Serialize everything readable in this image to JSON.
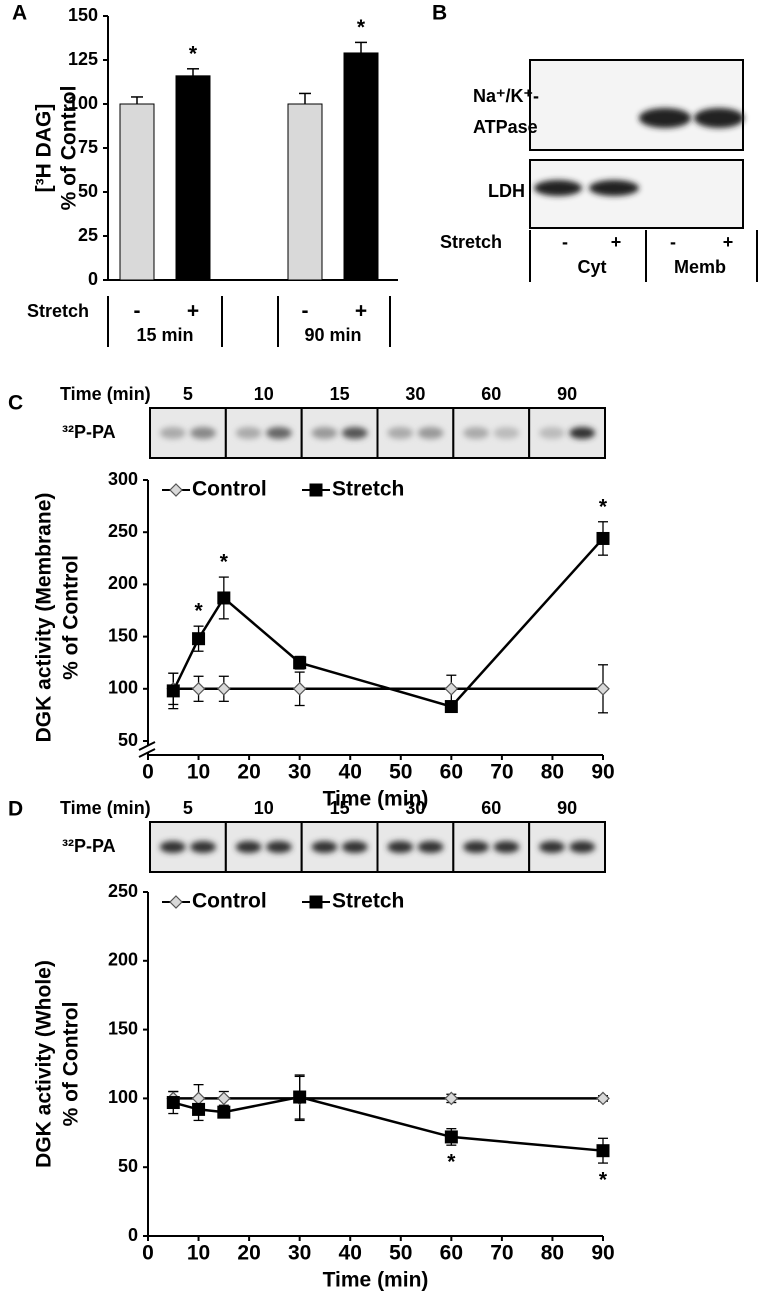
{
  "chart_data": [
    {
      "type": "bar",
      "panel": "A",
      "ylabel": [
        "[³H DAG]",
        "% of Control"
      ],
      "xlabel": "Stretch",
      "categories": [
        "-",
        "+",
        "-",
        "+"
      ],
      "groups": [
        "15 min",
        "90 min"
      ],
      "values": [
        100,
        116,
        100,
        129
      ],
      "errors": [
        4,
        4,
        6,
        6
      ],
      "colors": [
        "#d9d9d9",
        "#000000",
        "#d9d9d9",
        "#000000"
      ],
      "ylim": [
        0,
        150
      ],
      "yticks": [
        0,
        25,
        50,
        75,
        100,
        125,
        150
      ],
      "annotations": [
        {
          "text": "*",
          "index": 1
        },
        {
          "text": "*",
          "index": 3
        }
      ]
    },
    {
      "type": "line",
      "panel": "C",
      "ylabel": [
        "DGK activity (Membrane)",
        "% of Control"
      ],
      "xlabel": "Time (min)",
      "x": [
        5,
        10,
        15,
        30,
        60,
        90
      ],
      "series": [
        {
          "name": "Control",
          "color": "#000000",
          "marker": "diamond",
          "marker_fill": "#d9d9d9",
          "values": [
            100,
            100,
            100,
            100,
            100,
            100
          ],
          "errors": [
            15,
            12,
            12,
            16,
            13,
            23
          ]
        },
        {
          "name": "Stretch",
          "color": "#000000",
          "marker": "square",
          "marker_fill": "#000000",
          "values": [
            98,
            148,
            187,
            125,
            83,
            244
          ],
          "errors": [
            17,
            12,
            20,
            6,
            4,
            16
          ]
        }
      ],
      "xlim": [
        0,
        90
      ],
      "xticks": [
        0,
        10,
        20,
        30,
        40,
        50,
        60,
        70,
        80,
        90
      ],
      "ylim": [
        50,
        300
      ],
      "yticks": [
        50,
        100,
        150,
        200,
        250,
        300
      ],
      "axis_break": true,
      "legend": "top-left",
      "annotations": [
        {
          "text": "*",
          "series": 1,
          "x": 10,
          "side": "above"
        },
        {
          "text": "*",
          "series": 1,
          "x": 15,
          "side": "above"
        },
        {
          "text": "*",
          "series": 1,
          "x": 90,
          "side": "above"
        }
      ]
    },
    {
      "type": "line",
      "panel": "D",
      "ylabel": [
        "DGK activity (Whole)",
        "% of Control"
      ],
      "xlabel": "Time (min)",
      "x": [
        5,
        10,
        15,
        30,
        60,
        90
      ],
      "series": [
        {
          "name": "Control",
          "color": "#000000",
          "marker": "diamond",
          "marker_fill": "#d9d9d9",
          "values": [
            100,
            100,
            100,
            100,
            100,
            100
          ],
          "errors": [
            5,
            10,
            5,
            16,
            3,
            2
          ]
        },
        {
          "name": "Stretch",
          "color": "#000000",
          "marker": "square",
          "marker_fill": "#000000",
          "values": [
            97,
            92,
            90,
            101,
            72,
            62
          ],
          "errors": [
            8,
            8,
            4,
            16,
            6,
            9
          ]
        }
      ],
      "xlim": [
        0,
        90
      ],
      "xticks": [
        0,
        10,
        20,
        30,
        40,
        50,
        60,
        70,
        80,
        90
      ],
      "ylim": [
        0,
        250
      ],
      "yticks": [
        0,
        50,
        100,
        150,
        200,
        250
      ],
      "axis_break": false,
      "legend": "top-left",
      "annotations": [
        {
          "text": "*",
          "series": 1,
          "x": 60,
          "side": "below"
        },
        {
          "text": "*",
          "series": 1,
          "x": 90,
          "side": "below"
        }
      ]
    }
  ],
  "panel_b": {
    "letter": "B",
    "rows": [
      [
        "Na⁺/K⁺-",
        "ATPase"
      ],
      [
        "LDH"
      ]
    ],
    "stretch_label": "Stretch",
    "lanes": [
      "-",
      "+",
      "-",
      "+"
    ],
    "groups": [
      "Cyt",
      "Memb"
    ]
  },
  "gel_c": {
    "heading": "Time (min)",
    "row_label": "³²P-PA"
  },
  "gel_d": {
    "heading": "Time (min)",
    "row_label": "³²P-PA"
  }
}
